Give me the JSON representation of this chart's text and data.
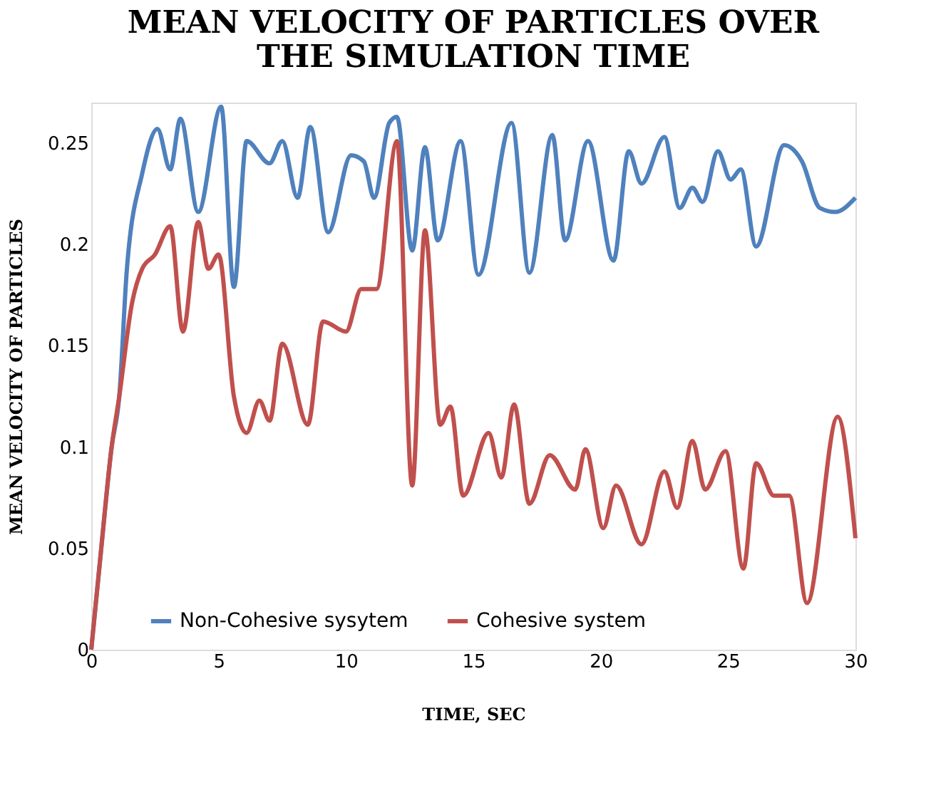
{
  "chart_data": {
    "type": "line",
    "title": [
      "MEAN VELOCITY OF PARTICLES OVER",
      "THE SIMULATION TIME"
    ],
    "xlabel": "TIME, SEC",
    "ylabel": "MEAN VELOCITY OF PARTICLES",
    "xlim": [
      0,
      30
    ],
    "ylim": [
      0,
      0.27
    ],
    "xticks": [
      0,
      5,
      10,
      15,
      20,
      25,
      30
    ],
    "yticks": [
      0,
      0.05,
      0.1,
      0.15,
      0.2,
      0.25
    ],
    "grid": false,
    "legend": "bottom",
    "marker": "none",
    "line_style": "solid",
    "series": [
      {
        "name": "Non-Cohesive sysytem",
        "color": "#4f81bd",
        "x": [
          0,
          0.4,
          0.8,
          1.1,
          1.4,
          2.0,
          2.6,
          3.1,
          3.5,
          4.2,
          5.1,
          5.6,
          6.1,
          7.0,
          7.5,
          8.1,
          8.6,
          9.3,
          10.2,
          10.7,
          11.1,
          11.7,
          12.0,
          12.6,
          13.1,
          13.6,
          14.5,
          15.2,
          16.5,
          17.2,
          18.1,
          18.6,
          19.5,
          20.5,
          21.1,
          21.6,
          22.5,
          23.1,
          23.6,
          24.0,
          24.6,
          25.1,
          25.5,
          26.1,
          27.2,
          27.9,
          28.6,
          29.2,
          30
        ],
        "values": [
          0,
          0.051,
          0.1,
          0.125,
          0.188,
          0.235,
          0.257,
          0.237,
          0.262,
          0.216,
          0.268,
          0.179,
          0.251,
          0.24,
          0.251,
          0.223,
          0.258,
          0.206,
          0.244,
          0.241,
          0.223,
          0.26,
          0.263,
          0.197,
          0.248,
          0.202,
          0.251,
          0.185,
          0.26,
          0.186,
          0.254,
          0.202,
          0.251,
          0.192,
          0.246,
          0.23,
          0.253,
          0.218,
          0.228,
          0.221,
          0.246,
          0.232,
          0.237,
          0.199,
          0.249,
          0.241,
          0.218,
          0.216,
          0.223
        ]
      },
      {
        "name": "Cohesive system",
        "color": "#c0504d",
        "x": [
          0,
          0.4,
          0.8,
          1.1,
          1.6,
          2.0,
          2.5,
          3.1,
          3.6,
          4.2,
          4.6,
          5.0,
          5.6,
          6.1,
          6.6,
          7.0,
          7.5,
          8.5,
          9.1,
          10.0,
          10.6,
          11.2,
          12.0,
          12.6,
          13.1,
          13.7,
          14.1,
          14.6,
          15.6,
          16.1,
          16.6,
          17.2,
          18.0,
          19.0,
          19.4,
          20.1,
          20.6,
          21.6,
          22.5,
          23.0,
          23.6,
          24.1,
          24.9,
          25.6,
          26.1,
          26.8,
          27.4,
          28.1,
          29.3,
          30
        ],
        "values": [
          0,
          0.051,
          0.1,
          0.125,
          0.171,
          0.188,
          0.195,
          0.209,
          0.157,
          0.211,
          0.188,
          0.195,
          0.125,
          0.107,
          0.123,
          0.113,
          0.151,
          0.111,
          0.162,
          0.157,
          0.178,
          0.178,
          0.251,
          0.081,
          0.207,
          0.111,
          0.12,
          0.076,
          0.107,
          0.085,
          0.121,
          0.072,
          0.096,
          0.079,
          0.099,
          0.06,
          0.081,
          0.052,
          0.088,
          0.07,
          0.103,
          0.079,
          0.098,
          0.04,
          0.092,
          0.076,
          0.076,
          0.023,
          0.115,
          0.055
        ]
      }
    ]
  }
}
